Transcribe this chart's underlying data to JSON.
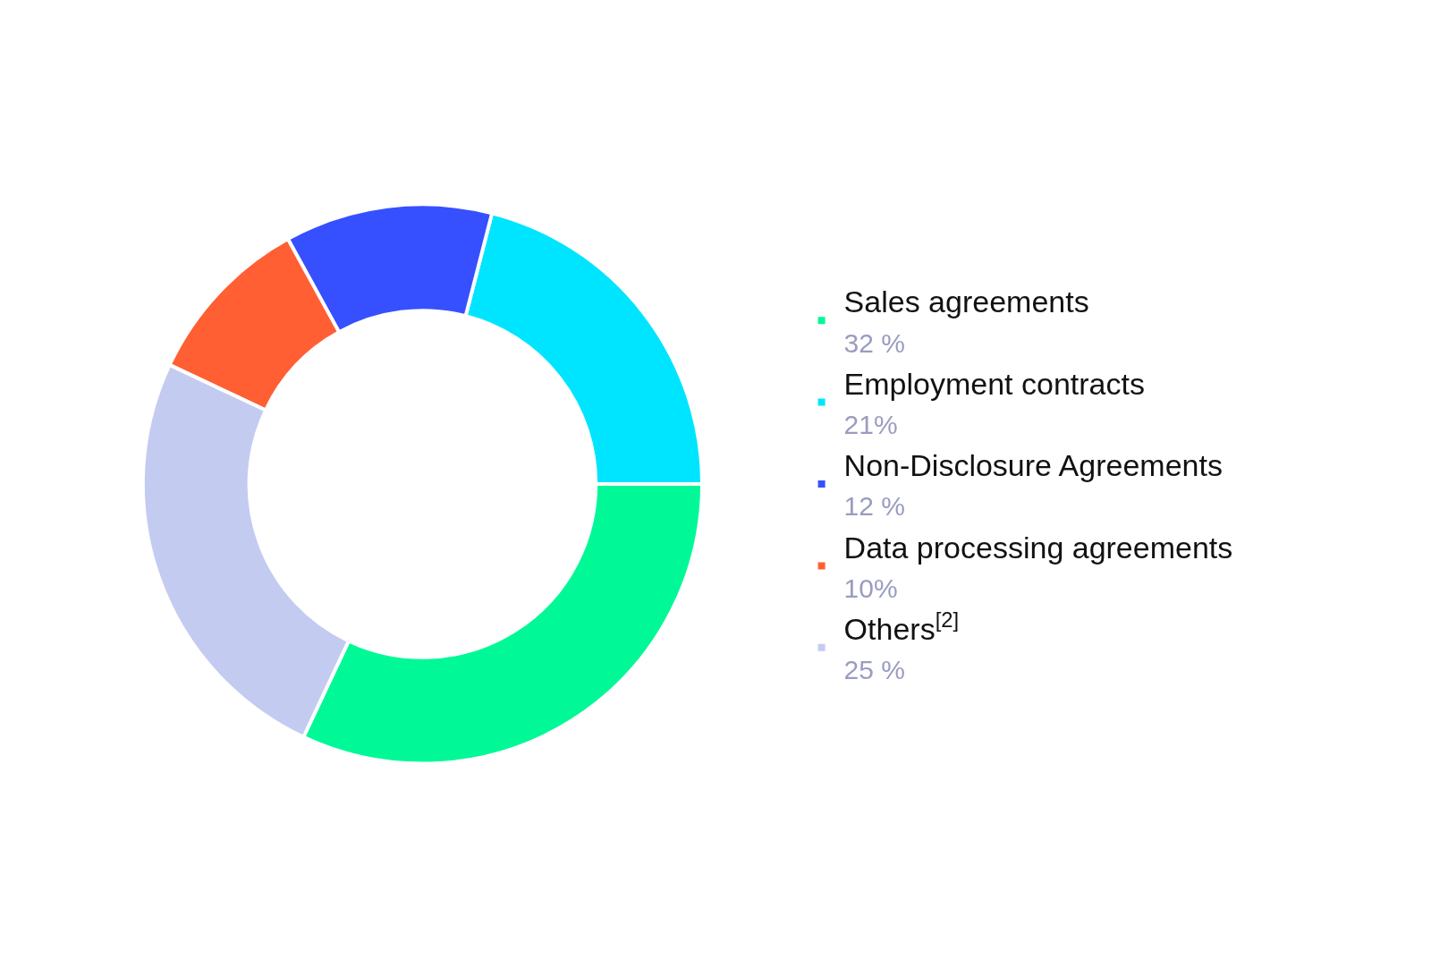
{
  "chart_data": {
    "type": "donut",
    "categories": [
      "Sales agreements",
      "Employment contracts",
      "Non-Disclosure Agreements",
      "Data processing agreements",
      "Others$^{[2]}$"
    ],
    "values": [
      32,
      21,
      12,
      10,
      25
    ],
    "colors": [
      "#00f996",
      "#00e5ff",
      "#3650ff",
      "#ff5f33",
      "#c4cbf0"
    ],
    "value_labels": [
      "32 %",
      "21%",
      "12 %",
      "10%",
      "25 %"
    ],
    "legend": "right"
  }
}
